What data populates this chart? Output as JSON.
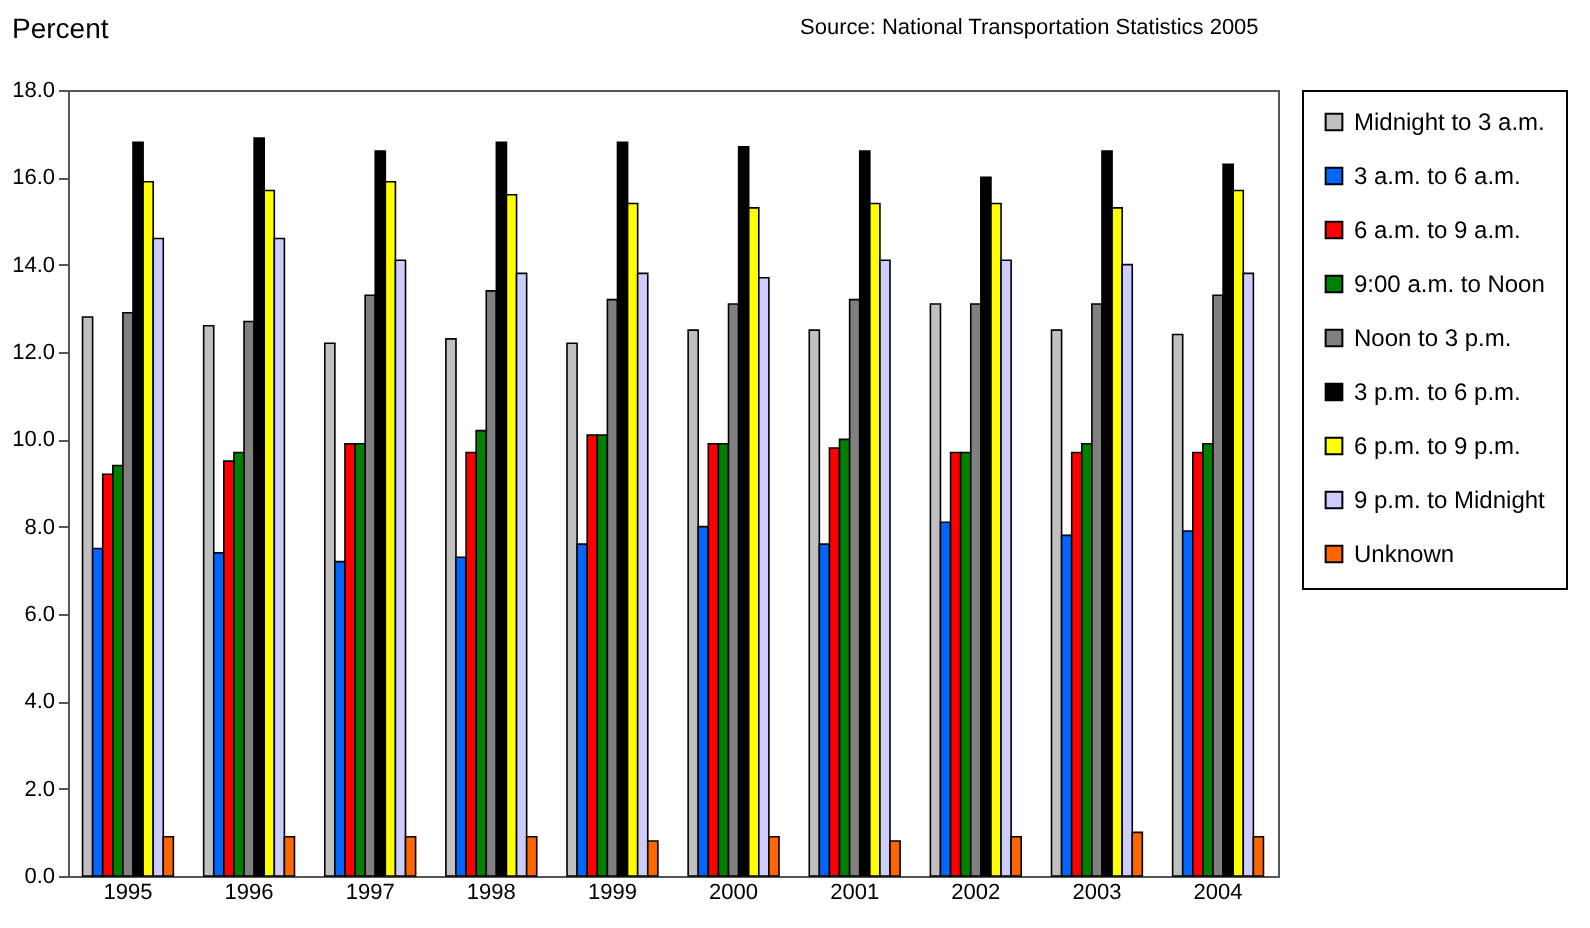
{
  "chart_data": {
    "type": "bar",
    "ylabel": "Percent",
    "annotations": [
      "Source:  National Transportation Statistics 2005"
    ],
    "categories": [
      "1995",
      "1996",
      "1997",
      "1998",
      "1999",
      "2000",
      "2001",
      "2002",
      "2003",
      "2004"
    ],
    "series": [
      {
        "name": "Midnight to 3 a.m.",
        "color": "#c0c0c0",
        "values": [
          12.8,
          12.6,
          12.2,
          12.3,
          12.2,
          12.5,
          12.5,
          13.1,
          12.5,
          12.4
        ]
      },
      {
        "name": "3 a.m. to 6 a.m.",
        "color": "#0066ff",
        "values": [
          7.5,
          7.4,
          7.2,
          7.3,
          7.6,
          8.0,
          7.6,
          8.1,
          7.8,
          7.9
        ]
      },
      {
        "name": "6 a.m. to 9 a.m.",
        "color": "#ff0000",
        "values": [
          9.2,
          9.5,
          9.9,
          9.7,
          10.1,
          9.9,
          9.8,
          9.7,
          9.7,
          9.7
        ]
      },
      {
        "name": "9:00 a.m. to Noon",
        "color": "#008000",
        "values": [
          9.4,
          9.7,
          9.9,
          10.2,
          10.1,
          9.9,
          10.0,
          9.7,
          9.9,
          9.9
        ]
      },
      {
        "name": "Noon to 3 p.m.",
        "color": "#808080",
        "values": [
          12.9,
          12.7,
          13.3,
          13.4,
          13.2,
          13.1,
          13.2,
          13.1,
          13.1,
          13.3
        ]
      },
      {
        "name": "3 p.m. to  6 p.m.",
        "color": "#000000",
        "values": [
          16.8,
          16.9,
          16.6,
          16.8,
          16.8,
          16.7,
          16.6,
          16.0,
          16.6,
          16.3
        ]
      },
      {
        "name": "6 p.m. to 9 p.m.",
        "color": "#ffff00",
        "values": [
          15.9,
          15.7,
          15.9,
          15.6,
          15.4,
          15.3,
          15.4,
          15.4,
          15.3,
          15.7
        ]
      },
      {
        "name": "9 p.m. to Midnight",
        "color": "#ccccff",
        "values": [
          14.6,
          14.6,
          14.1,
          13.8,
          13.8,
          13.7,
          14.1,
          14.1,
          14.0,
          13.8
        ]
      },
      {
        "name": "Unknown",
        "color": "#ff6600",
        "values": [
          0.9,
          0.9,
          0.9,
          0.9,
          0.8,
          0.9,
          0.8,
          0.9,
          1.0,
          0.9
        ]
      }
    ],
    "ylim": [
      0,
      18
    ],
    "yticks": [
      {
        "value": 0,
        "label": "0.0"
      },
      {
        "value": 2,
        "label": "2.0"
      },
      {
        "value": 4,
        "label": "4.0"
      },
      {
        "value": 6,
        "label": "6.0"
      },
      {
        "value": 8,
        "label": "8.0"
      },
      {
        "value": 10,
        "label": "10.0"
      },
      {
        "value": 12,
        "label": "12.0"
      },
      {
        "value": 14,
        "label": "14.0"
      },
      {
        "value": 16,
        "label": "16.0"
      },
      {
        "value": 18,
        "label": "18.0"
      }
    ],
    "grid": false,
    "legend": "right"
  }
}
